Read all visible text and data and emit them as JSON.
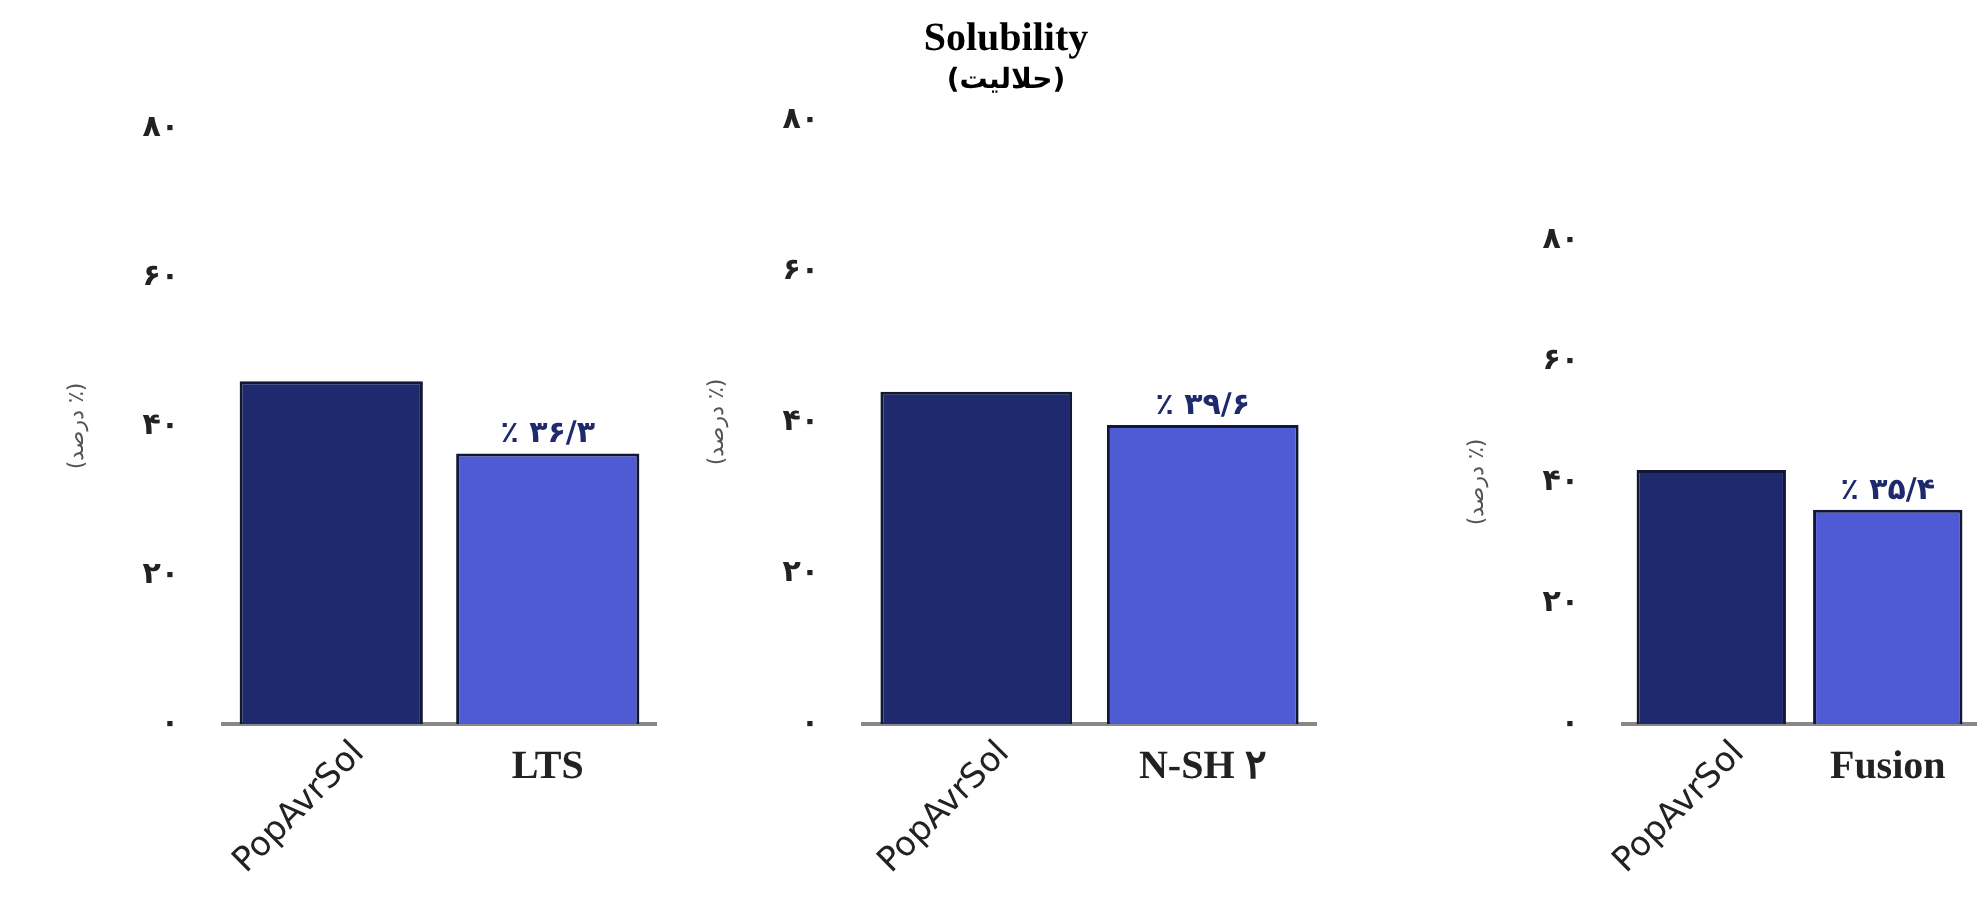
{
  "chart_data": [
    {
      "type": "bar",
      "ylabel": "(درصد ٪)",
      "categories": [
        "PopAvrSol",
        "LTS"
      ],
      "values": [
        46,
        36.3
      ],
      "colors": [
        "#1f2a6e",
        "#4f5bd5"
      ],
      "value_labels": [
        null,
        "۳۶/۳ ٪"
      ],
      "ylim": [
        0,
        80
      ],
      "yticks": [
        {
          "value": 0,
          "label": "۰"
        },
        {
          "value": 20,
          "label": "۲۰"
        },
        {
          "value": 40,
          "label": "۴۰"
        },
        {
          "value": 60,
          "label": "۶۰"
        },
        {
          "value": 80,
          "label": "۸۰"
        }
      ],
      "grid": false
    },
    {
      "type": "bar",
      "title": "Solubility",
      "subtitle": "(حلالیت)",
      "ylabel": "(درصد ٪)",
      "categories": [
        "PopAvrSol",
        "N-SH ۲"
      ],
      "values": [
        44,
        39.6
      ],
      "colors": [
        "#1f2a6e",
        "#4f5bd5"
      ],
      "value_labels": [
        null,
        "۳۹/۶ ٪"
      ],
      "ylim": [
        0,
        80
      ],
      "yticks": [
        {
          "value": 0,
          "label": "۰"
        },
        {
          "value": 20,
          "label": "۲۰"
        },
        {
          "value": 40,
          "label": "۴۰"
        },
        {
          "value": 60,
          "label": "۶۰"
        },
        {
          "value": 80,
          "label": "۸۰"
        }
      ],
      "grid": false
    },
    {
      "type": "bar",
      "ylabel": "(درصد ٪)",
      "categories": [
        "PopAvrSol",
        "Fusion"
      ],
      "values": [
        42,
        35.4
      ],
      "colors": [
        "#1f2a6e",
        "#4f5bd5"
      ],
      "value_labels": [
        null,
        "۳۵/۴ ٪"
      ],
      "ylim": [
        0,
        80
      ],
      "yticks": [
        {
          "value": 0,
          "label": "۰"
        },
        {
          "value": 20,
          "label": "۲۰"
        },
        {
          "value": 40,
          "label": "۴۰"
        },
        {
          "value": 60,
          "label": "۶۰"
        },
        {
          "value": 80,
          "label": "۸۰"
        }
      ],
      "grid": false
    }
  ]
}
